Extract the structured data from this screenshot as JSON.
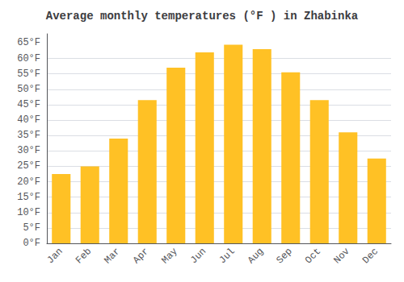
{
  "chart_data": {
    "type": "bar",
    "title": "Average monthly temperatures (°F ) in Zhabinka",
    "categories": [
      "Jan",
      "Feb",
      "Mar",
      "Apr",
      "May",
      "Jun",
      "Jul",
      "Aug",
      "Sep",
      "Oct",
      "Nov",
      "Dec"
    ],
    "values": [
      22.5,
      25.0,
      34.0,
      46.5,
      57.0,
      62.0,
      64.5,
      63.0,
      55.5,
      46.5,
      36.0,
      27.5
    ],
    "color": "#FFC125",
    "ylim": [
      0,
      68
    ],
    "yticks": [
      {
        "value": 0,
        "label": "0°F"
      },
      {
        "value": 5,
        "label": "5°F"
      },
      {
        "value": 10,
        "label": "10°F"
      },
      {
        "value": 15,
        "label": "15°F"
      },
      {
        "value": 20,
        "label": "20°F"
      },
      {
        "value": 25,
        "label": "25°F"
      },
      {
        "value": 30,
        "label": "30°F"
      },
      {
        "value": 35,
        "label": "35°F"
      },
      {
        "value": 40,
        "label": "40°F"
      },
      {
        "value": 45,
        "label": "45°F"
      },
      {
        "value": 50,
        "label": "50°F"
      },
      {
        "value": 55,
        "label": "55°F"
      },
      {
        "value": 60,
        "label": "60°F"
      },
      {
        "value": 65,
        "label": "65°F"
      }
    ],
    "grid": true
  }
}
